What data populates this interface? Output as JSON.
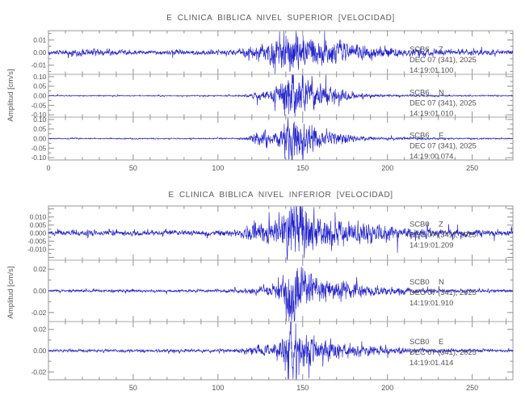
{
  "colors": {
    "trace": "#2424cc",
    "frame": "#a8a8a8",
    "tick": "#909090",
    "text": "#555555",
    "background": "#ffffff"
  },
  "chart_data": [
    {
      "type": "line",
      "title": "E CLINICA BIBLICA NIVEL SUPERIOR [VELOCIDAD]",
      "ylabel": "Amplitud [cm/s]",
      "xlim": [
        0,
        274
      ],
      "x_minor_step": 10,
      "x_major_step": 50,
      "x_labeled_ticks": [
        {
          "v": 0,
          "label": "0"
        },
        {
          "v": 50,
          "label": "50"
        },
        {
          "v": 100,
          "label": "100"
        },
        {
          "v": 150,
          "label": "150"
        },
        {
          "v": 200,
          "label": "200"
        },
        {
          "v": 250,
          "label": "250"
        }
      ],
      "legend_position": "inside-right",
      "grid": false,
      "traces": [
        {
          "station": "SCB6",
          "channel": "Z",
          "info_date": "DEC 07 (341), 2025",
          "info_time": "14:19:01.100",
          "ylim": 0.017,
          "y_minor_step": 0.005,
          "yticks": [
            {
              "v": 0.01,
              "label": "0.01"
            },
            {
              "v": 0.0,
              "label": "0.00"
            },
            {
              "v": -0.01,
              "label": "-0.01"
            }
          ],
          "seed": 101,
          "envelope": [
            [
              0,
              0.0013
            ],
            [
              12,
              0.0018
            ],
            [
              20,
              0.0026
            ],
            [
              30,
              0.0024
            ],
            [
              45,
              0.0015
            ],
            [
              60,
              0.0013
            ],
            [
              75,
              0.0014
            ],
            [
              90,
              0.0013
            ],
            [
              105,
              0.0016
            ],
            [
              112,
              0.002
            ],
            [
              118,
              0.0035
            ],
            [
              124,
              0.005
            ],
            [
              130,
              0.0065
            ],
            [
              136,
              0.009
            ],
            [
              140,
              0.013
            ],
            [
              144,
              0.016
            ],
            [
              149,
              0.011
            ],
            [
              155,
              0.0085
            ],
            [
              162,
              0.0075
            ],
            [
              170,
              0.0065
            ],
            [
              178,
              0.0055
            ],
            [
              188,
              0.0042
            ],
            [
              200,
              0.0032
            ],
            [
              212,
              0.0026
            ],
            [
              228,
              0.002
            ],
            [
              248,
              0.0016
            ],
            [
              274,
              0.0013
            ]
          ]
        },
        {
          "station": "SCB6",
          "channel": "N",
          "info_date": "DEC 07 (341), 2025",
          "info_time": "14:19:01.010",
          "ylim": 0.11,
          "y_minor_step": 0.025,
          "yticks": [
            {
              "v": 0.1,
              "label": "0.10"
            },
            {
              "v": 0.05,
              "label": "0.05"
            },
            {
              "v": 0.0,
              "label": "0.00"
            },
            {
              "v": -0.05,
              "label": "-0.05"
            },
            {
              "v": -0.1,
              "label": "-0.10"
            }
          ],
          "seed": 202,
          "envelope": [
            [
              0,
              0.002
            ],
            [
              40,
              0.0022
            ],
            [
              80,
              0.002
            ],
            [
              105,
              0.0025
            ],
            [
              115,
              0.004
            ],
            [
              120,
              0.009
            ],
            [
              126,
              0.022
            ],
            [
              131,
              0.03
            ],
            [
              136,
              0.05
            ],
            [
              140,
              0.09
            ],
            [
              143,
              0.105
            ],
            [
              146,
              0.08
            ],
            [
              150,
              0.062
            ],
            [
              155,
              0.05
            ],
            [
              160,
              0.04
            ],
            [
              166,
              0.034
            ],
            [
              172,
              0.028
            ],
            [
              178,
              0.018
            ],
            [
              184,
              0.012
            ],
            [
              190,
              0.008
            ],
            [
              198,
              0.005
            ],
            [
              210,
              0.0038
            ],
            [
              230,
              0.003
            ],
            [
              274,
              0.0024
            ]
          ]
        },
        {
          "station": "SCB6",
          "channel": "E",
          "info_date": "DEC 07 (341), 2025",
          "info_time": "14:19:00.074",
          "ylim": 0.11,
          "y_minor_step": 0.025,
          "yticks": [
            {
              "v": 0.1,
              "label": "0.10"
            },
            {
              "v": 0.05,
              "label": "0.05"
            },
            {
              "v": 0.0,
              "label": "0.00"
            },
            {
              "v": -0.05,
              "label": "-0.05"
            },
            {
              "v": -0.1,
              "label": "-0.10"
            }
          ],
          "seed": 303,
          "envelope": [
            [
              0,
              0.002
            ],
            [
              60,
              0.0022
            ],
            [
              100,
              0.0024
            ],
            [
              112,
              0.003
            ],
            [
              118,
              0.008
            ],
            [
              122,
              0.024
            ],
            [
              127,
              0.031
            ],
            [
              132,
              0.026
            ],
            [
              136,
              0.032
            ],
            [
              140,
              0.065
            ],
            [
              143,
              0.11
            ],
            [
              147,
              0.09
            ],
            [
              151,
              0.07
            ],
            [
              156,
              0.052
            ],
            [
              162,
              0.04
            ],
            [
              168,
              0.032
            ],
            [
              174,
              0.024
            ],
            [
              180,
              0.015
            ],
            [
              187,
              0.009
            ],
            [
              194,
              0.0065
            ],
            [
              205,
              0.005
            ],
            [
              220,
              0.004
            ],
            [
              240,
              0.003
            ],
            [
              274,
              0.0024
            ]
          ]
        }
      ]
    },
    {
      "type": "line",
      "title": "E CLINICA BIBLICA NIVEL INFERIOR [VELOCIDAD]",
      "ylabel": "Amplitud [cm/s]",
      "xlim": [
        0,
        274
      ],
      "x_minor_step": 10,
      "x_major_step": 50,
      "x_labeled_ticks": [
        {
          "v": 50,
          "label": "50"
        },
        {
          "v": 100,
          "label": "100"
        },
        {
          "v": 150,
          "label": "150"
        },
        {
          "v": 200,
          "label": "200"
        },
        {
          "v": 250,
          "label": "250"
        }
      ],
      "legend_position": "inside-right",
      "grid": false,
      "traces": [
        {
          "station": "SCB0",
          "channel": "Z",
          "info_date": "DEC 07 (341), 2025",
          "info_time": "14:19:01.209",
          "ylim": 0.0165,
          "y_minor_step": 0.0025,
          "yticks": [
            {
              "v": 0.01,
              "label": "0.010"
            },
            {
              "v": 0.005,
              "label": "0.005"
            },
            {
              "v": 0.0,
              "label": "0.000"
            },
            {
              "v": -0.005,
              "label": "-0.005"
            },
            {
              "v": -0.01,
              "label": "-0.010"
            }
          ],
          "seed": 404,
          "envelope": [
            [
              0,
              0.0011
            ],
            [
              15,
              0.0013
            ],
            [
              30,
              0.0014
            ],
            [
              50,
              0.0012
            ],
            [
              70,
              0.0013
            ],
            [
              90,
              0.0012
            ],
            [
              105,
              0.0014
            ],
            [
              112,
              0.0018
            ],
            [
              118,
              0.0035
            ],
            [
              123,
              0.0048
            ],
            [
              128,
              0.0055
            ],
            [
              134,
              0.006
            ],
            [
              138,
              0.0085
            ],
            [
              141,
              0.0125
            ],
            [
              144,
              0.0155
            ],
            [
              148,
              0.011
            ],
            [
              152,
              0.012
            ],
            [
              157,
              0.009
            ],
            [
              163,
              0.008
            ],
            [
              170,
              0.007
            ],
            [
              177,
              0.006
            ],
            [
              185,
              0.005
            ],
            [
              194,
              0.004
            ],
            [
              204,
              0.0033
            ],
            [
              216,
              0.0027
            ],
            [
              232,
              0.0021
            ],
            [
              252,
              0.0016
            ],
            [
              274,
              0.0013
            ]
          ]
        },
        {
          "station": "SCB0",
          "channel": "N",
          "info_date": "DEC 07 (341), 2025",
          "info_time": "14:19:01.910",
          "ylim": 0.028,
          "y_minor_step": 0.01,
          "yticks": [
            {
              "v": 0.02,
              "label": "0.02"
            },
            {
              "v": 0.0,
              "label": "0.00"
            },
            {
              "v": -0.02,
              "label": "-0.02"
            }
          ],
          "seed": 505,
          "envelope": [
            [
              0,
              0.0009
            ],
            [
              40,
              0.001
            ],
            [
              80,
              0.0009
            ],
            [
              105,
              0.0011
            ],
            [
              115,
              0.0016
            ],
            [
              122,
              0.0028
            ],
            [
              128,
              0.0035
            ],
            [
              133,
              0.0042
            ],
            [
              137,
              0.007
            ],
            [
              140,
              0.019
            ],
            [
              142,
              0.027
            ],
            [
              145,
              0.021
            ],
            [
              149,
              0.014
            ],
            [
              153,
              0.012
            ],
            [
              158,
              0.0085
            ],
            [
              163,
              0.009
            ],
            [
              169,
              0.0065
            ],
            [
              176,
              0.0055
            ],
            [
              184,
              0.0045
            ],
            [
              193,
              0.0035
            ],
            [
              203,
              0.0028
            ],
            [
              215,
              0.0021
            ],
            [
              232,
              0.0016
            ],
            [
              252,
              0.0012
            ],
            [
              274,
              0.001
            ]
          ]
        },
        {
          "station": "SCB0",
          "channel": "E",
          "info_date": "DEC 07 (341), 2025",
          "info_time": "14:19:01.414",
          "ylim": 0.027,
          "y_minor_step": 0.01,
          "yticks": [
            {
              "v": 0.02,
              "label": "0.02"
            },
            {
              "v": 0.0,
              "label": "0.00"
            },
            {
              "v": -0.02,
              "label": "-0.02"
            }
          ],
          "seed": 606,
          "envelope": [
            [
              0,
              0.0009
            ],
            [
              50,
              0.001
            ],
            [
              95,
              0.001
            ],
            [
              108,
              0.0012
            ],
            [
              116,
              0.002
            ],
            [
              121,
              0.0035
            ],
            [
              126,
              0.0045
            ],
            [
              131,
              0.0042
            ],
            [
              136,
              0.006
            ],
            [
              139,
              0.011
            ],
            [
              142,
              0.026
            ],
            [
              145,
              0.019
            ],
            [
              149,
              0.0145
            ],
            [
              154,
              0.011
            ],
            [
              159,
              0.0085
            ],
            [
              165,
              0.007
            ],
            [
              172,
              0.0055
            ],
            [
              180,
              0.0045
            ],
            [
              190,
              0.0035
            ],
            [
              200,
              0.0027
            ],
            [
              212,
              0.002
            ],
            [
              228,
              0.0015
            ],
            [
              248,
              0.0012
            ],
            [
              274,
              0.001
            ]
          ]
        }
      ]
    }
  ]
}
